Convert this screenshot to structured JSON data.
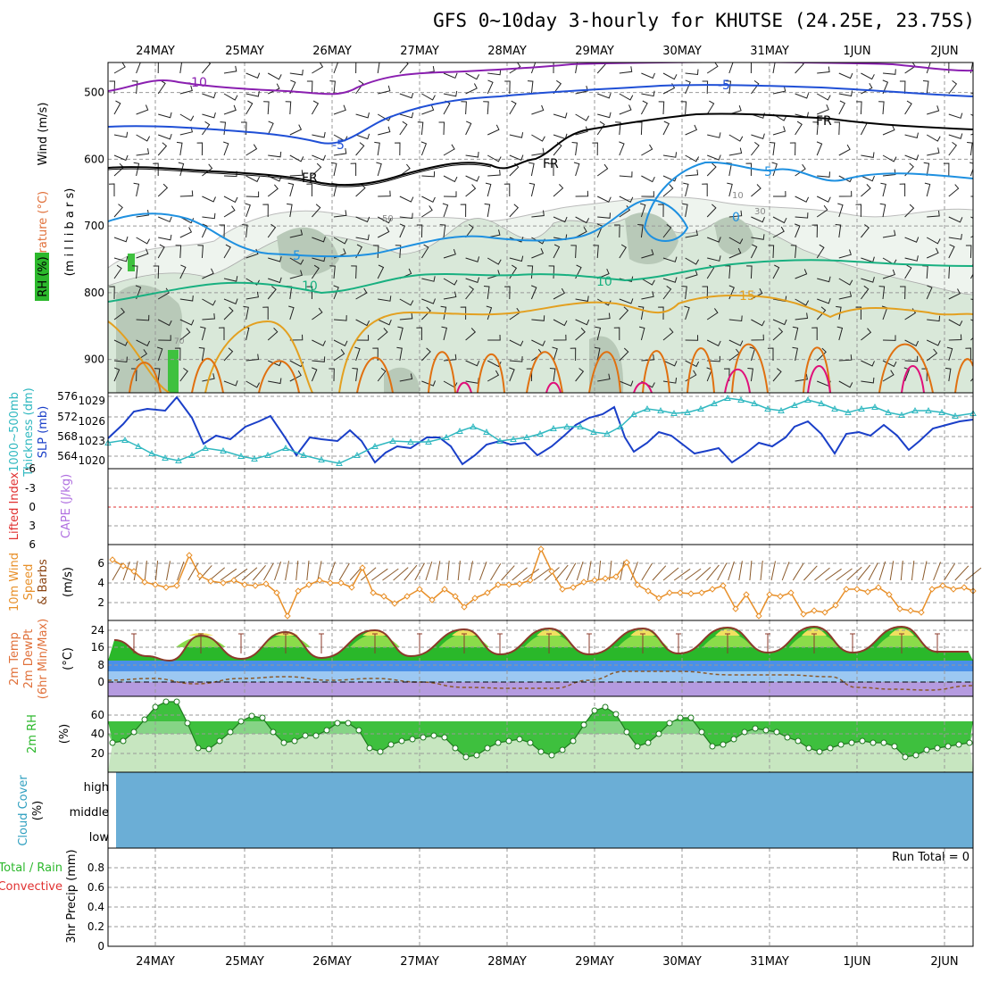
{
  "title": "GFS 0~10day 3-hourly for KHUTSE (24.25E, 23.75S)",
  "dates": [
    "24MAY",
    "25MAY",
    "26MAY",
    "27MAY",
    "28MAY",
    "29MAY",
    "30MAY",
    "31MAY",
    "1JUN",
    "2JUN"
  ],
  "panels": {
    "upper": {
      "ylabel_wind": "Wind (m/s)",
      "ylabel_temp": "Temperature (°C)",
      "ylabel_rh": "RH (%)",
      "ylabel_pressure": "(m i l l i b a r s)",
      "yticks": [
        500,
        600,
        700,
        800,
        900
      ],
      "contour_labels": {
        "t_m10": "-10",
        "t_m5": "-5",
        "t_0": "0",
        "t_5": "5",
        "t_10": "10",
        "t_15": "15",
        "fr": "FR",
        "rh_10": "10",
        "rh_30": "30",
        "rh_50": "50",
        "rh_70": "70"
      }
    },
    "thickness": {
      "ylabel_left": "1000~500mb Thickness (dm)",
      "ylabel_left_1": "1000~500mb",
      "ylabel_left_2": "Thickness (dm)",
      "ylabel_right": "SLP (mb)",
      "yticks_thk": [
        "576",
        "572",
        "568",
        "564"
      ],
      "yticks_slp": [
        "1029",
        "1026",
        "1023",
        "1020"
      ]
    },
    "li": {
      "ylabel_li": "Lifted Index",
      "ylabel_cape": "CAPE (J/kg)",
      "yticks": [
        "-6",
        "-3",
        "0",
        "3",
        "6"
      ]
    },
    "wind10": {
      "ylabel_1": "10m Wind",
      "ylabel_2": "Speed",
      "ylabel_3": "& Barbs",
      "ylabel_4": "(m/s)",
      "yticks": [
        "6",
        "4",
        "2"
      ]
    },
    "temp2m": {
      "ylabel_1": "2m Temp",
      "ylabel_2": "2m DewPt",
      "ylabel_3": "(6hr Min/Max)",
      "ylabel_4": "(°C)",
      "yticks": [
        "24",
        "16",
        "8",
        "0"
      ]
    },
    "rh2m": {
      "ylabel_1": "2m RH",
      "ylabel_2": "(%)",
      "yticks": [
        "60",
        "40",
        "20"
      ]
    },
    "cloud": {
      "ylabel_1": "Cloud Cover",
      "ylabel_2": "(%)",
      "levels": [
        "high",
        "middle",
        "low"
      ],
      "fill_color": "#6baed6"
    },
    "precip": {
      "ylabel_1": "Total / Rain",
      "ylabel_2": "Convective",
      "ylabel_3": "3hr Precip (mm)",
      "yticks": [
        "0.8",
        "0.6",
        "0.4",
        "0.2",
        "0"
      ],
      "run_total": "Run Total = 0"
    }
  },
  "colors": {
    "t_m10": "#8a1fb0",
    "t_m5": "#1f4fd6",
    "t_0": "#0a0a0a",
    "t_5": "#1e90e0",
    "t_10": "#18b080",
    "t_15": "#e3a020",
    "t_20": "#e07010",
    "t_25": "#e0107a",
    "rh_light": "#e6f0e6",
    "rh_mid": "#c7dcc7",
    "rh_dark": "#9fb39f",
    "slp": "#1a3fc8",
    "thk": "#30b8c0",
    "wind": "#e8902a",
    "rh_green": "#2cb82c"
  },
  "chart_data": [
    {
      "type": "contour",
      "panel": "upper",
      "x": [
        "24MAY",
        "25MAY",
        "26MAY",
        "27MAY",
        "28MAY",
        "29MAY",
        "30MAY",
        "31MAY",
        "1JUN",
        "2JUN"
      ],
      "ylabel": "millibars",
      "ylim": [
        455,
        950
      ],
      "series": [
        {
          "name": "-10",
          "values": [
            498,
            478,
            468,
            462,
            462,
            460,
            458,
            458,
            458,
            462
          ]
        },
        {
          "name": "-5",
          "values": [
            545,
            552,
            560,
            530,
            516,
            514,
            510,
            500,
            498,
            502
          ]
        },
        {
          "name": "FR",
          "values": [
            607,
            615,
            635,
            598,
            600,
            568,
            542,
            532,
            530,
            548
          ]
        },
        {
          "name": "5",
          "values": [
            683,
            700,
            720,
            714,
            712,
            682,
            685,
            610,
            618,
            618
          ]
        },
        {
          "name": "10",
          "values": [
            790,
            810,
            818,
            800,
            795,
            796,
            780,
            778,
            768,
            765
          ]
        }
      ]
    },
    {
      "type": "line",
      "panel": "thickness",
      "x": [
        "24MAY",
        "25MAY",
        "26MAY",
        "27MAY",
        "28MAY",
        "29MAY",
        "30MAY",
        "31MAY",
        "1JUN",
        "2JUN"
      ],
      "ylabel": "SLP (mb)",
      "ylim": [
        1018,
        1030
      ],
      "series": [
        {
          "name": "SLP (mb)",
          "values": [
            1027,
            1022,
            1024,
            1021,
            1022,
            1024,
            1026,
            1021,
            1023,
            1024
          ]
        },
        {
          "name": "1000~500mb Thickness (dm)",
          "values": [
            567,
            565,
            564,
            568,
            569,
            569,
            573,
            574,
            573,
            572
          ]
        }
      ]
    },
    {
      "type": "line",
      "panel": "li",
      "x": [
        "24MAY",
        "25MAY",
        "26MAY",
        "27MAY",
        "28MAY",
        "29MAY",
        "30MAY",
        "31MAY",
        "1JUN",
        "2JUN"
      ],
      "ylabel": "Lifted Index",
      "ylim": [
        -6,
        6
      ],
      "series": []
    },
    {
      "type": "line",
      "panel": "wind10",
      "x": [
        "24MAY",
        "25MAY",
        "26MAY",
        "27MAY",
        "28MAY",
        "29MAY",
        "30MAY",
        "31MAY",
        "1JUN",
        "2JUN"
      ],
      "ylabel": "(m/s)",
      "ylim": [
        0,
        7.5
      ],
      "series": [
        {
          "name": "10m Wind",
          "values": [
            6.2,
            4.2,
            3.6,
            2.5,
            3.4,
            4.5,
            3.2,
            2.4,
            2.6,
            3.4
          ]
        }
      ]
    },
    {
      "type": "area",
      "panel": "temp2m",
      "x": [
        "24MAY",
        "25MAY",
        "26MAY",
        "27MAY",
        "28MAY",
        "29MAY",
        "30MAY",
        "31MAY",
        "1JUN",
        "2JUN"
      ],
      "ylabel": "(°C)",
      "ylim": [
        -8,
        28
      ],
      "series": [
        {
          "name": "2m Temp max",
          "values": [
            19,
            21,
            22,
            23,
            24,
            24,
            24,
            25,
            25,
            25
          ]
        },
        {
          "name": "2m Temp min",
          "values": [
            10,
            11,
            11,
            12,
            13,
            13,
            13,
            14,
            14,
            14
          ]
        },
        {
          "name": "2m DewPt",
          "values": [
            1,
            -1,
            2,
            0,
            -1,
            -3,
            4,
            3,
            -1,
            -2
          ]
        }
      ]
    },
    {
      "type": "area",
      "panel": "rh2m",
      "x": [
        "24MAY",
        "25MAY",
        "26MAY",
        "27MAY",
        "28MAY",
        "29MAY",
        "30MAY",
        "31MAY",
        "1JUN",
        "2JUN"
      ],
      "ylabel": "(%)",
      "ylim": [
        0,
        80
      ],
      "series": [
        {
          "name": "2m RH",
          "values": [
            55,
            45,
            40,
            35,
            28,
            60,
            45,
            40,
            30,
            25
          ]
        }
      ]
    },
    {
      "type": "bar",
      "panel": "precip",
      "x": [
        "24MAY",
        "25MAY",
        "26MAY",
        "27MAY",
        "28MAY",
        "29MAY",
        "30MAY",
        "31MAY",
        "1JUN",
        "2JUN"
      ],
      "ylabel": "3hr Precip (mm)",
      "ylim": [
        0,
        1
      ],
      "series": [
        {
          "name": "Total / Rain",
          "values": [
            0,
            0,
            0,
            0,
            0,
            0,
            0,
            0,
            0,
            0
          ]
        },
        {
          "name": "Convective",
          "values": [
            0,
            0,
            0,
            0,
            0,
            0,
            0,
            0,
            0,
            0
          ]
        }
      ]
    }
  ]
}
